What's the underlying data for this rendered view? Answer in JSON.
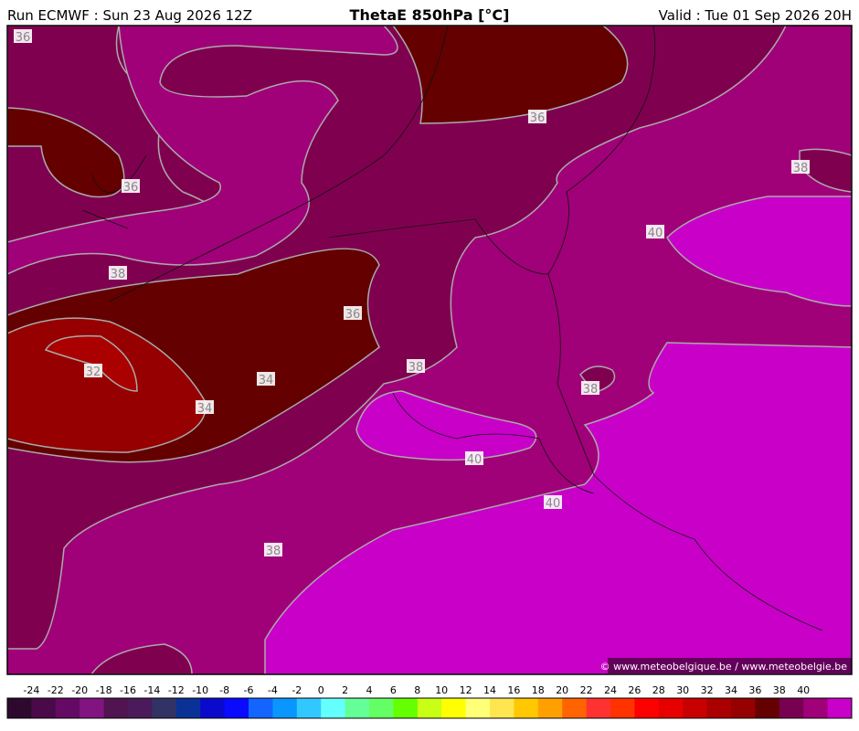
{
  "header": {
    "run": "Run ECMWF : Sun 23 Aug 2026 12Z",
    "title": "ThetaE 850hPa [°C]",
    "valid": "Valid : Tue 01 Sep 2026 20H"
  },
  "contour_labels": [
    36,
    36,
    36,
    38,
    40,
    38,
    36,
    32,
    34,
    34,
    38,
    38,
    40,
    40,
    38
  ],
  "copyright": "© www.meteobelgique.be / www.meteobelgie.be",
  "colorbar": {
    "labels": [
      -24,
      -22,
      -20,
      -18,
      -16,
      -14,
      -12,
      -10,
      -8,
      -6,
      -4,
      -2,
      0,
      2,
      4,
      6,
      8,
      10,
      12,
      14,
      16,
      18,
      20,
      22,
      24,
      26,
      28,
      30,
      32,
      34,
      36,
      38,
      40
    ],
    "colors": [
      "#2d0a2d",
      "#4a0a4a",
      "#640a64",
      "#821482",
      "#501450",
      "#4a1a5a",
      "#323264",
      "#0a3296",
      "#0a0acd",
      "#0a0aff",
      "#1464ff",
      "#0a96ff",
      "#32c8ff",
      "#64ffff",
      "#64ff96",
      "#64ff64",
      "#64ff00",
      "#c8ff14",
      "#ffff00",
      "#ffff78",
      "#ffe650",
      "#ffc800",
      "#ffa000",
      "#ff6400",
      "#ff3232",
      "#ff3200",
      "#ff0000",
      "#e60000",
      "#c80000",
      "#aa0000",
      "#960000",
      "#640000",
      "#780050",
      "#a00078",
      "#c800c8"
    ]
  }
}
